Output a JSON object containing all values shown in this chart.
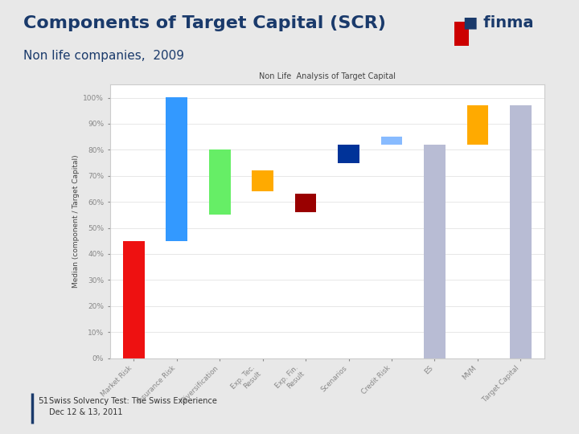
{
  "title_main": "Components of Target Capital (SCR)",
  "title_sub": "Non life companies,  2009",
  "chart_title": "Non Life  Analysis of Target Capital",
  "ylabel": "Median (component / Target Capital)",
  "slide_bg": "#e8e8e8",
  "chart_bg": "#ffffff",
  "chart_border": "#cccccc",
  "categories": [
    "Market Risk",
    "Insurance Risk",
    "Diversification",
    "Exp. Tec.\nResult",
    "Exp. Fin.\nResult",
    "Scenarios",
    "Credit Risk",
    "ES",
    "MVM",
    "Target Capital"
  ],
  "bar_bottoms": [
    0,
    45,
    80,
    72,
    63,
    75,
    82,
    0,
    82,
    0
  ],
  "bar_heights": [
    45,
    55,
    -25,
    -8,
    -7,
    7,
    3,
    82,
    15,
    97
  ],
  "bar_colors": [
    "#ee1111",
    "#3399ff",
    "#66ee66",
    "#ffaa00",
    "#990000",
    "#003399",
    "#88bbff",
    "#b8bcd4",
    "#ffaa00",
    "#b8bcd4"
  ],
  "ylim": [
    0,
    105
  ],
  "yticks": [
    0,
    10,
    20,
    30,
    40,
    50,
    60,
    70,
    80,
    90,
    100
  ],
  "ytick_labels": [
    "0%",
    "10%",
    "20%",
    "30%",
    "40%",
    "50%",
    "60%",
    "70%",
    "80%",
    "90%",
    "100%"
  ],
  "finma_color": "#1a3a6b",
  "footer_line": "#1a3a6b",
  "footer_number": "51",
  "footer_text": "Swiss Solvency Test: The Swiss Experience\nDec 12 & 13, 2011"
}
